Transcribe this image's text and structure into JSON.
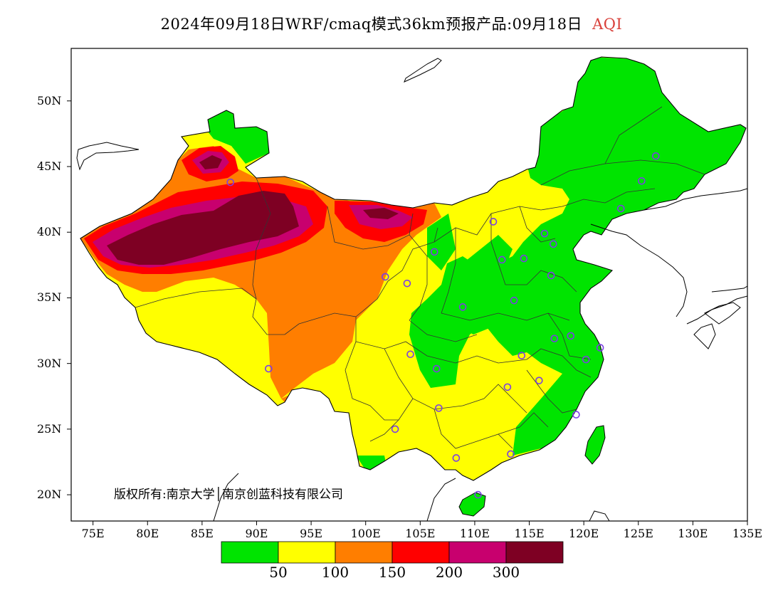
{
  "title": {
    "main": "2024年09月18日WRF/cmaq模式36km预报产品:09月18日",
    "variable": "AQI"
  },
  "axes": {
    "lat_ticks": [
      "50N",
      "45N",
      "40N",
      "35N",
      "30N",
      "25N",
      "20N"
    ],
    "lon_ticks": [
      "75E",
      "80E",
      "85E",
      "90E",
      "95E",
      "100E",
      "105E",
      "110E",
      "115E",
      "120E",
      "125E",
      "130E",
      "135E"
    ]
  },
  "copyright": "版权所有:南京大学│南京创蓝科技有限公司",
  "legend": {
    "colors": [
      "#00e400",
      "#ffff00",
      "#ff7e00",
      "#ff0000",
      "#c8006e",
      "#7e0023"
    ],
    "thresholds": [
      "50",
      "100",
      "150",
      "200",
      "300"
    ]
  },
  "stations": [
    {
      "lon": 87.6,
      "lat": 43.8
    },
    {
      "lon": 91.1,
      "lat": 29.6
    },
    {
      "lon": 101.8,
      "lat": 36.6
    },
    {
      "lon": 103.8,
      "lat": 36.1
    },
    {
      "lon": 106.3,
      "lat": 38.5
    },
    {
      "lon": 111.7,
      "lat": 40.8
    },
    {
      "lon": 116.4,
      "lat": 39.9
    },
    {
      "lon": 117.2,
      "lat": 39.1
    },
    {
      "lon": 114.5,
      "lat": 38.0
    },
    {
      "lon": 112.5,
      "lat": 37.9
    },
    {
      "lon": 108.9,
      "lat": 34.3
    },
    {
      "lon": 113.6,
      "lat": 34.8
    },
    {
      "lon": 117.0,
      "lat": 36.7
    },
    {
      "lon": 123.4,
      "lat": 41.8
    },
    {
      "lon": 125.3,
      "lat": 43.9
    },
    {
      "lon": 126.6,
      "lat": 45.8
    },
    {
      "lon": 104.1,
      "lat": 30.7
    },
    {
      "lon": 106.5,
      "lat": 29.6
    },
    {
      "lon": 114.3,
      "lat": 30.6
    },
    {
      "lon": 117.3,
      "lat": 31.9
    },
    {
      "lon": 118.8,
      "lat": 32.1
    },
    {
      "lon": 120.2,
      "lat": 30.3
    },
    {
      "lon": 121.5,
      "lat": 31.2
    },
    {
      "lon": 113.0,
      "lat": 28.2
    },
    {
      "lon": 115.9,
      "lat": 28.7
    },
    {
      "lon": 119.3,
      "lat": 26.1
    },
    {
      "lon": 106.7,
      "lat": 26.6
    },
    {
      "lon": 102.7,
      "lat": 25.0
    },
    {
      "lon": 108.3,
      "lat": 22.8
    },
    {
      "lon": 113.3,
      "lat": 23.1
    },
    {
      "lon": 110.3,
      "lat": 20.0
    }
  ]
}
